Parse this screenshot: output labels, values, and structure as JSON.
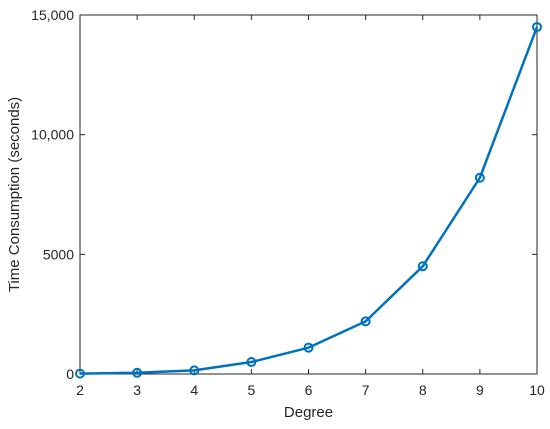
{
  "chart_data": {
    "type": "line",
    "title": "",
    "xlabel": "Degree",
    "ylabel": "Time Consumption (seconds)",
    "xlim": [
      2,
      10
    ],
    "ylim": [
      0,
      15000
    ],
    "x_ticks": [
      2,
      3,
      4,
      5,
      6,
      7,
      8,
      9,
      10
    ],
    "x_tick_labels": [
      "2",
      "3",
      "4",
      "5",
      "6",
      "7",
      "8",
      "9",
      "10"
    ],
    "y_ticks": [
      0,
      5000,
      10000,
      15000
    ],
    "y_tick_labels": [
      "0",
      "5000",
      "10,000",
      "15,000"
    ],
    "grid": false,
    "series": [
      {
        "marker": "circle",
        "color": "#0072BD",
        "x": [
          2,
          3,
          4,
          5,
          6,
          7,
          8,
          9,
          10
        ],
        "y": [
          15,
          50,
          150,
          500,
          1100,
          2200,
          4500,
          8200,
          14500
        ]
      }
    ]
  }
}
